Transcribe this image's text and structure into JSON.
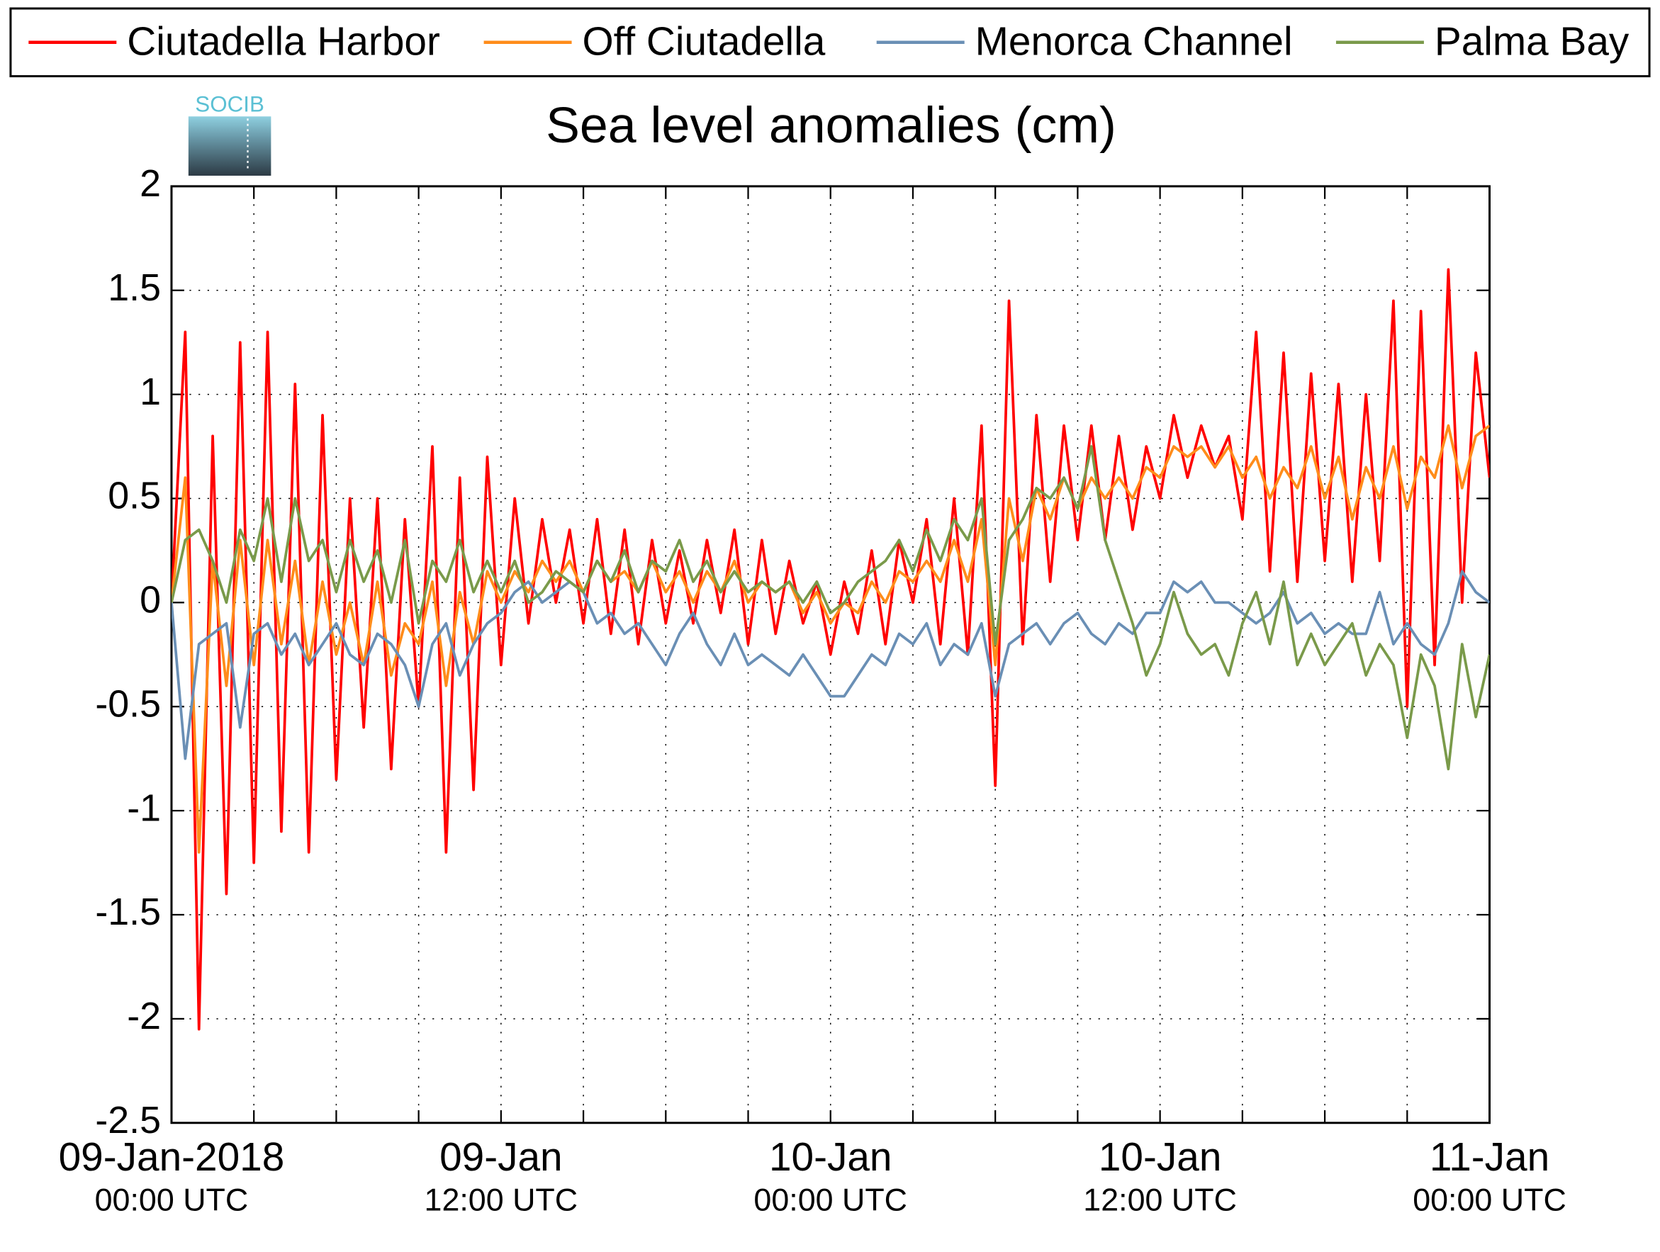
{
  "chart_data": {
    "type": "line",
    "title": "Sea level anomalies (cm)",
    "logo_text": "SOCIB",
    "x": [
      0,
      0.5,
      1,
      1.5,
      2,
      2.5,
      3,
      3.5,
      4,
      4.5,
      5,
      5.5,
      6,
      6.5,
      7,
      7.5,
      8,
      8.5,
      9,
      9.5,
      10,
      10.5,
      11,
      11.5,
      12,
      12.5,
      13,
      13.5,
      14,
      14.5,
      15,
      15.5,
      16,
      16.5,
      17,
      17.5,
      18,
      18.5,
      19,
      19.5,
      20,
      20.5,
      21,
      21.5,
      22,
      22.5,
      23,
      23.5,
      24,
      24.5,
      25,
      25.5,
      26,
      26.5,
      27,
      27.5,
      28,
      28.5,
      29,
      29.5,
      30,
      30.5,
      31,
      31.5,
      32,
      32.5,
      33,
      33.5,
      34,
      34.5,
      35,
      35.5,
      36,
      36.5,
      37,
      37.5,
      38,
      38.5,
      39,
      39.5,
      40,
      40.5,
      41,
      41.5,
      42,
      42.5,
      43,
      43.5,
      44,
      44.5,
      45,
      45.5,
      46,
      46.5,
      47,
      47.5,
      48
    ],
    "series": [
      {
        "name": "Ciutadella Harbor",
        "color": "#ff0000",
        "values": [
          0,
          1.3,
          -2.05,
          0.8,
          -1.4,
          1.25,
          -1.25,
          1.3,
          -1.1,
          1.05,
          -1.2,
          0.9,
          -0.85,
          0.5,
          -0.6,
          0.5,
          -0.8,
          0.4,
          -0.5,
          0.75,
          -1.2,
          0.6,
          -0.9,
          0.7,
          -0.3,
          0.5,
          -0.1,
          0.4,
          0,
          0.35,
          -0.1,
          0.4,
          -0.15,
          0.35,
          -0.2,
          0.3,
          -0.1,
          0.25,
          -0.1,
          0.3,
          -0.05,
          0.35,
          -0.2,
          0.3,
          -0.15,
          0.2,
          -0.1,
          0.1,
          -0.25,
          0.1,
          -0.15,
          0.25,
          -0.2,
          0.3,
          0,
          0.4,
          -0.2,
          0.5,
          -0.25,
          0.85,
          -0.88,
          1.45,
          -0.2,
          0.9,
          0.1,
          0.85,
          0.3,
          0.85,
          0.3,
          0.8,
          0.35,
          0.75,
          0.5,
          0.9,
          0.6,
          0.85,
          0.65,
          0.8,
          0.4,
          1.3,
          0.15,
          1.2,
          0.1,
          1.1,
          0.2,
          1.05,
          0.1,
          1.0,
          0.2,
          1.45,
          -0.5,
          1.4,
          -0.3,
          1.6,
          0,
          1.2,
          0.6
        ]
      },
      {
        "name": "Off Ciutadella",
        "color": "#ff8c1a",
        "values": [
          0,
          0.6,
          -1.2,
          0.2,
          -0.4,
          0.3,
          -0.3,
          0.3,
          -0.2,
          0.2,
          -0.3,
          0.1,
          -0.25,
          0,
          -0.3,
          0.1,
          -0.35,
          -0.1,
          -0.2,
          0.1,
          -0.4,
          0.05,
          -0.2,
          0.15,
          0,
          0.15,
          0.05,
          0.2,
          0.1,
          0.2,
          0.05,
          0.2,
          0.1,
          0.15,
          0.05,
          0.2,
          0.05,
          0.15,
          0,
          0.15,
          0.05,
          0.2,
          0,
          0.1,
          0.05,
          0.1,
          -0.05,
          0.05,
          -0.1,
          0,
          -0.05,
          0.1,
          0,
          0.15,
          0.1,
          0.2,
          0.1,
          0.3,
          0.1,
          0.4,
          -0.3,
          0.5,
          0.2,
          0.55,
          0.4,
          0.6,
          0.45,
          0.6,
          0.5,
          0.6,
          0.5,
          0.65,
          0.6,
          0.75,
          0.7,
          0.75,
          0.65,
          0.75,
          0.6,
          0.7,
          0.5,
          0.65,
          0.55,
          0.75,
          0.5,
          0.7,
          0.4,
          0.65,
          0.5,
          0.75,
          0.45,
          0.7,
          0.6,
          0.85,
          0.55,
          0.8,
          0.85
        ]
      },
      {
        "name": "Menorca Channel",
        "color": "#6a8fb5",
        "values": [
          0,
          -0.75,
          -0.2,
          -0.15,
          -0.1,
          -0.6,
          -0.15,
          -0.1,
          -0.25,
          -0.15,
          -0.3,
          -0.2,
          -0.1,
          -0.25,
          -0.3,
          -0.15,
          -0.2,
          -0.3,
          -0.5,
          -0.2,
          -0.1,
          -0.35,
          -0.2,
          -0.1,
          -0.05,
          0.05,
          0.1,
          0,
          0.05,
          0.1,
          0.05,
          -0.1,
          -0.05,
          -0.15,
          -0.1,
          -0.2,
          -0.3,
          -0.15,
          -0.05,
          -0.2,
          -0.3,
          -0.15,
          -0.3,
          -0.25,
          -0.3,
          -0.35,
          -0.25,
          -0.35,
          -0.45,
          -0.45,
          -0.35,
          -0.25,
          -0.3,
          -0.15,
          -0.2,
          -0.1,
          -0.3,
          -0.2,
          -0.25,
          -0.1,
          -0.45,
          -0.2,
          -0.15,
          -0.1,
          -0.2,
          -0.1,
          -0.05,
          -0.15,
          -0.2,
          -0.1,
          -0.15,
          -0.05,
          -0.05,
          0.1,
          0.05,
          0.1,
          0,
          0,
          -0.05,
          -0.1,
          -0.05,
          0.05,
          -0.1,
          -0.05,
          -0.15,
          -0.1,
          -0.15,
          -0.15,
          0.05,
          -0.2,
          -0.1,
          -0.2,
          -0.25,
          -0.1,
          0.15,
          0.05,
          0
        ]
      },
      {
        "name": "Palma Bay",
        "color": "#7a9a4a",
        "values": [
          0,
          0.3,
          0.35,
          0.2,
          0,
          0.35,
          0.2,
          0.5,
          0.1,
          0.5,
          0.2,
          0.3,
          0.05,
          0.3,
          0.1,
          0.25,
          0,
          0.3,
          -0.1,
          0.2,
          0.1,
          0.3,
          0.05,
          0.2,
          0.05,
          0.2,
          0,
          0.05,
          0.15,
          0.1,
          0.05,
          0.2,
          0.1,
          0.25,
          0.05,
          0.2,
          0.15,
          0.3,
          0.1,
          0.2,
          0.05,
          0.15,
          0.05,
          0.1,
          0.05,
          0.1,
          0,
          0.1,
          -0.05,
          0,
          0.1,
          0.15,
          0.2,
          0.3,
          0.15,
          0.35,
          0.2,
          0.4,
          0.3,
          0.5,
          -0.2,
          0.3,
          0.4,
          0.55,
          0.5,
          0.6,
          0.45,
          0.75,
          0.3,
          0.1,
          -0.1,
          -0.35,
          -0.2,
          0.05,
          -0.15,
          -0.25,
          -0.2,
          -0.35,
          -0.1,
          0.05,
          -0.2,
          0.1,
          -0.3,
          -0.15,
          -0.3,
          -0.2,
          -0.1,
          -0.35,
          -0.2,
          -0.3,
          -0.65,
          -0.25,
          -0.4,
          -0.8,
          -0.2,
          -0.55,
          -0.25
        ]
      }
    ],
    "xlim": [
      0,
      48
    ],
    "xticks": [
      {
        "value": 0,
        "label": "09-Jan-2018",
        "sublabel": "00:00 UTC"
      },
      {
        "value": 3,
        "label": null
      },
      {
        "value": 6,
        "label": null
      },
      {
        "value": 9,
        "label": null
      },
      {
        "value": 12,
        "label": "09-Jan",
        "sublabel": "12:00 UTC"
      },
      {
        "value": 15,
        "label": null
      },
      {
        "value": 18,
        "label": null
      },
      {
        "value": 21,
        "label": null
      },
      {
        "value": 24,
        "label": "10-Jan",
        "sublabel": "00:00 UTC"
      },
      {
        "value": 27,
        "label": null
      },
      {
        "value": 30,
        "label": null
      },
      {
        "value": 33,
        "label": null
      },
      {
        "value": 36,
        "label": "10-Jan",
        "sublabel": "12:00 UTC"
      },
      {
        "value": 39,
        "label": null
      },
      {
        "value": 42,
        "label": null
      },
      {
        "value": 45,
        "label": null
      },
      {
        "value": 48,
        "label": "11-Jan",
        "sublabel": "00:00 UTC"
      }
    ],
    "ylim": [
      -2.5,
      2
    ],
    "yticks": [
      -2.5,
      -2,
      -1.5,
      -1,
      -0.5,
      0,
      0.5,
      1,
      1.5,
      2
    ],
    "grid": true
  }
}
